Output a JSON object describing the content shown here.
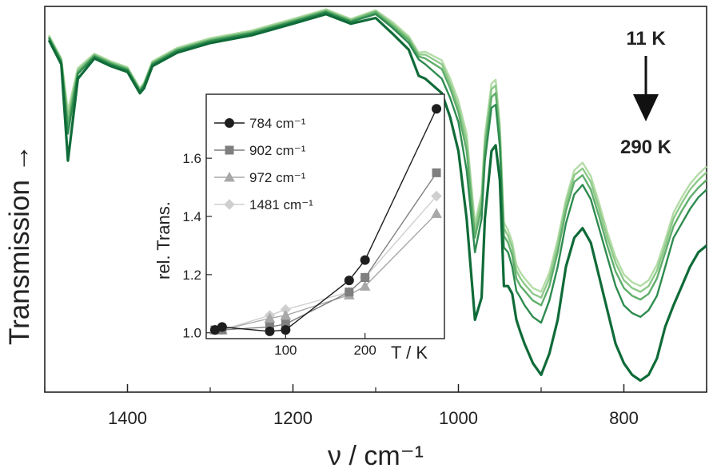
{
  "chart_data": [
    {
      "type": "line",
      "title": "",
      "xlabel": "ν / cm⁻¹",
      "ylabel": "Transmission →",
      "xlim": [
        1500,
        700
      ],
      "x_reversed": true,
      "ylim": [
        0.9,
        1.3
      ],
      "y_ticks_shown": false,
      "x_ticks": [
        1400,
        1200,
        1000,
        800
      ],
      "x_tick_labels": [
        "1400",
        "1200",
        "1000",
        "800"
      ],
      "grid": false,
      "annotations": {
        "temp_top": "11 K",
        "temp_bottom": "290 K",
        "arrow": "down"
      },
      "x": [
        1495,
        1480,
        1472,
        1460,
        1440,
        1420,
        1400,
        1385,
        1380,
        1370,
        1340,
        1300,
        1250,
        1200,
        1160,
        1130,
        1100,
        1080,
        1060,
        1048,
        1040,
        1020,
        1010,
        1000,
        990,
        980,
        972,
        968,
        960,
        955,
        950,
        945,
        940,
        935,
        930,
        925,
        920,
        910,
        900,
        890,
        880,
        870,
        860,
        850,
        840,
        830,
        820,
        810,
        800,
        790,
        780,
        770,
        760,
        750,
        740,
        730,
        720,
        710,
        700
      ],
      "series": [
        {
          "color": "#0f6b38",
          "values": [
            1.265,
            1.24,
            1.14,
            1.225,
            1.246,
            1.238,
            1.232,
            1.21,
            1.215,
            1.238,
            1.252,
            1.262,
            1.27,
            1.282,
            1.292,
            1.282,
            1.288,
            1.272,
            1.255,
            1.228,
            1.225,
            1.21,
            1.185,
            1.15,
            1.08,
            0.975,
            0.998,
            1.08,
            1.15,
            1.156,
            1.12,
            1.01,
            1.01,
            1.002,
            0.975,
            0.962,
            0.95,
            0.93,
            0.918,
            0.94,
            0.975,
            1.03,
            1.06,
            1.07,
            1.055,
            1.02,
            0.985,
            0.95,
            0.93,
            0.918,
            0.912,
            0.918,
            0.935,
            0.968,
            0.99,
            1.01,
            1.03,
            1.045,
            1.052
          ]
        },
        {
          "color": "#2e8b4f",
          "values": [
            1.267,
            1.242,
            1.168,
            1.23,
            1.248,
            1.24,
            1.234,
            1.212,
            1.218,
            1.24,
            1.254,
            1.264,
            1.272,
            1.284,
            1.294,
            1.284,
            1.292,
            1.278,
            1.262,
            1.245,
            1.24,
            1.225,
            1.205,
            1.18,
            1.13,
            1.045,
            1.08,
            1.14,
            1.195,
            1.198,
            1.155,
            1.05,
            1.045,
            1.03,
            1.005,
            0.998,
            0.99,
            0.978,
            0.972,
            0.995,
            1.03,
            1.075,
            1.105,
            1.115,
            1.1,
            1.07,
            1.04,
            1.01,
            0.99,
            0.982,
            0.978,
            0.985,
            1.0,
            1.03,
            1.06,
            1.075,
            1.09,
            1.102,
            1.11
          ]
        },
        {
          "color": "#5fae6b",
          "values": [
            1.268,
            1.244,
            1.178,
            1.232,
            1.249,
            1.241,
            1.235,
            1.213,
            1.219,
            1.241,
            1.255,
            1.265,
            1.273,
            1.285,
            1.295,
            1.285,
            1.294,
            1.28,
            1.265,
            1.248,
            1.246,
            1.235,
            1.215,
            1.19,
            1.15,
            1.06,
            1.092,
            1.152,
            1.206,
            1.21,
            1.165,
            1.062,
            1.055,
            1.042,
            1.018,
            1.01,
            1.005,
            0.995,
            0.99,
            1.01,
            1.045,
            1.088,
            1.118,
            1.125,
            1.11,
            1.082,
            1.052,
            1.025,
            1.008,
            1.0,
            0.996,
            1.002,
            1.018,
            1.045,
            1.072,
            1.088,
            1.102,
            1.112,
            1.12
          ]
        },
        {
          "color": "#8ec98a",
          "values": [
            1.269,
            1.245,
            1.185,
            1.234,
            1.25,
            1.242,
            1.236,
            1.214,
            1.22,
            1.242,
            1.256,
            1.266,
            1.274,
            1.286,
            1.296,
            1.286,
            1.295,
            1.282,
            1.267,
            1.25,
            1.25,
            1.24,
            1.22,
            1.196,
            1.16,
            1.068,
            1.1,
            1.16,
            1.214,
            1.218,
            1.172,
            1.07,
            1.062,
            1.05,
            1.026,
            1.018,
            1.012,
            1.002,
            0.998,
            1.018,
            1.052,
            1.095,
            1.125,
            1.132,
            1.118,
            1.09,
            1.06,
            1.034,
            1.016,
            1.008,
            1.004,
            1.01,
            1.026,
            1.052,
            1.08,
            1.096,
            1.11,
            1.12,
            1.128
          ]
        },
        {
          "color": "#b3dca6",
          "values": [
            1.27,
            1.246,
            1.192,
            1.236,
            1.251,
            1.243,
            1.237,
            1.215,
            1.221,
            1.243,
            1.257,
            1.267,
            1.275,
            1.287,
            1.297,
            1.287,
            1.296,
            1.284,
            1.269,
            1.252,
            1.253,
            1.244,
            1.225,
            1.202,
            1.168,
            1.075,
            1.106,
            1.166,
            1.22,
            1.224,
            1.178,
            1.076,
            1.068,
            1.056,
            1.032,
            1.024,
            1.018,
            1.008,
            1.004,
            1.024,
            1.058,
            1.1,
            1.13,
            1.138,
            1.124,
            1.096,
            1.066,
            1.04,
            1.022,
            1.014,
            1.01,
            1.016,
            1.032,
            1.058,
            1.086,
            1.102,
            1.116,
            1.126,
            1.134
          ]
        }
      ]
    },
    {
      "type": "line",
      "title": "",
      "xlabel": "T / K",
      "ylabel": "rel. Trans.",
      "xlim": [
        0,
        300
      ],
      "ylim": [
        0.98,
        1.82
      ],
      "x_ticks": [
        100,
        200
      ],
      "x_tick_labels": [
        "100",
        "200"
      ],
      "y_ticks": [
        1.0,
        1.2,
        1.4,
        1.6
      ],
      "y_tick_labels": [
        "1.0",
        "1.2",
        "1.4",
        "1.6"
      ],
      "legend": "top-left",
      "grid": false,
      "series": [
        {
          "name": "784 cm⁻¹",
          "color": "#1e1e1e",
          "marker": "circle",
          "x": [
            11,
            20,
            80,
            100,
            180,
            200,
            290
          ],
          "values": [
            1.01,
            1.02,
            1.005,
            1.01,
            1.18,
            1.25,
            1.77
          ]
        },
        {
          "name": "902 cm⁻¹",
          "color": "#7f7f7f",
          "marker": "square",
          "x": [
            11,
            20,
            80,
            100,
            180,
            200,
            290
          ],
          "values": [
            1.01,
            1.01,
            1.02,
            1.03,
            1.14,
            1.19,
            1.55
          ]
        },
        {
          "name": "972 cm⁻¹",
          "color": "#a8a8a8",
          "marker": "triangle",
          "x": [
            11,
            20,
            80,
            100,
            180,
            200,
            290
          ],
          "values": [
            1.01,
            1.01,
            1.05,
            1.06,
            1.13,
            1.16,
            1.41
          ]
        },
        {
          "name": "1481 cm⁻¹",
          "color": "#cfcfcf",
          "marker": "diamond",
          "x": [
            11,
            20,
            80,
            100,
            180,
            200,
            290
          ],
          "values": [
            1.01,
            1.01,
            1.06,
            1.08,
            1.14,
            1.19,
            1.47
          ]
        }
      ]
    }
  ]
}
